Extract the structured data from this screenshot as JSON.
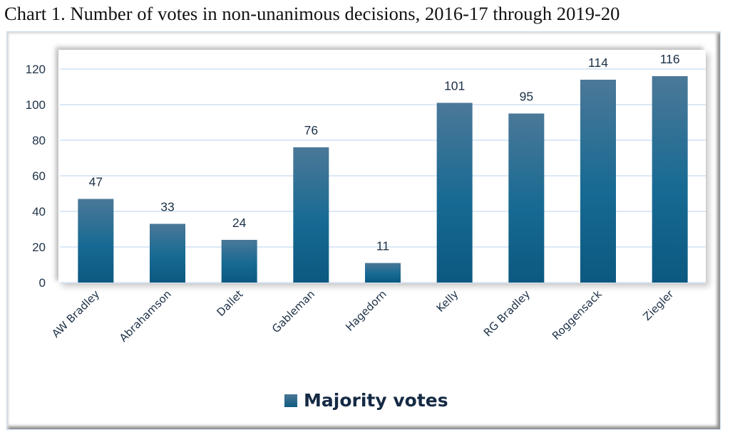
{
  "title": "Chart 1. Number of votes in non-unanimous decisions, 2016-17 through 2019-20",
  "colors": {
    "bar_top": "#4b7898",
    "bar_bottom": "#0c5880",
    "gridline": "#cfe0f3",
    "text": "#1d3147"
  },
  "chart_data": {
    "type": "bar",
    "title": "Chart 1. Number of votes in non-unanimous decisions, 2016-17 through 2019-20",
    "xlabel": "",
    "ylabel": "",
    "categories": [
      "AW Bradley",
      "Abrahamson",
      "Dallet",
      "Gableman",
      "Hagedorn",
      "Kelly",
      "RG Bradley",
      "Roggensack",
      "Ziegler"
    ],
    "series": [
      {
        "name": "Majority votes",
        "values": [
          47,
          33,
          24,
          76,
          11,
          101,
          95,
          114,
          116
        ]
      }
    ],
    "ylim": [
      0,
      120
    ],
    "yticks": [
      0,
      20,
      40,
      60,
      80,
      100,
      120
    ],
    "grid": true,
    "data_labels": true,
    "legend": "bottom-center"
  },
  "legend": {
    "label": "Majority votes"
  }
}
